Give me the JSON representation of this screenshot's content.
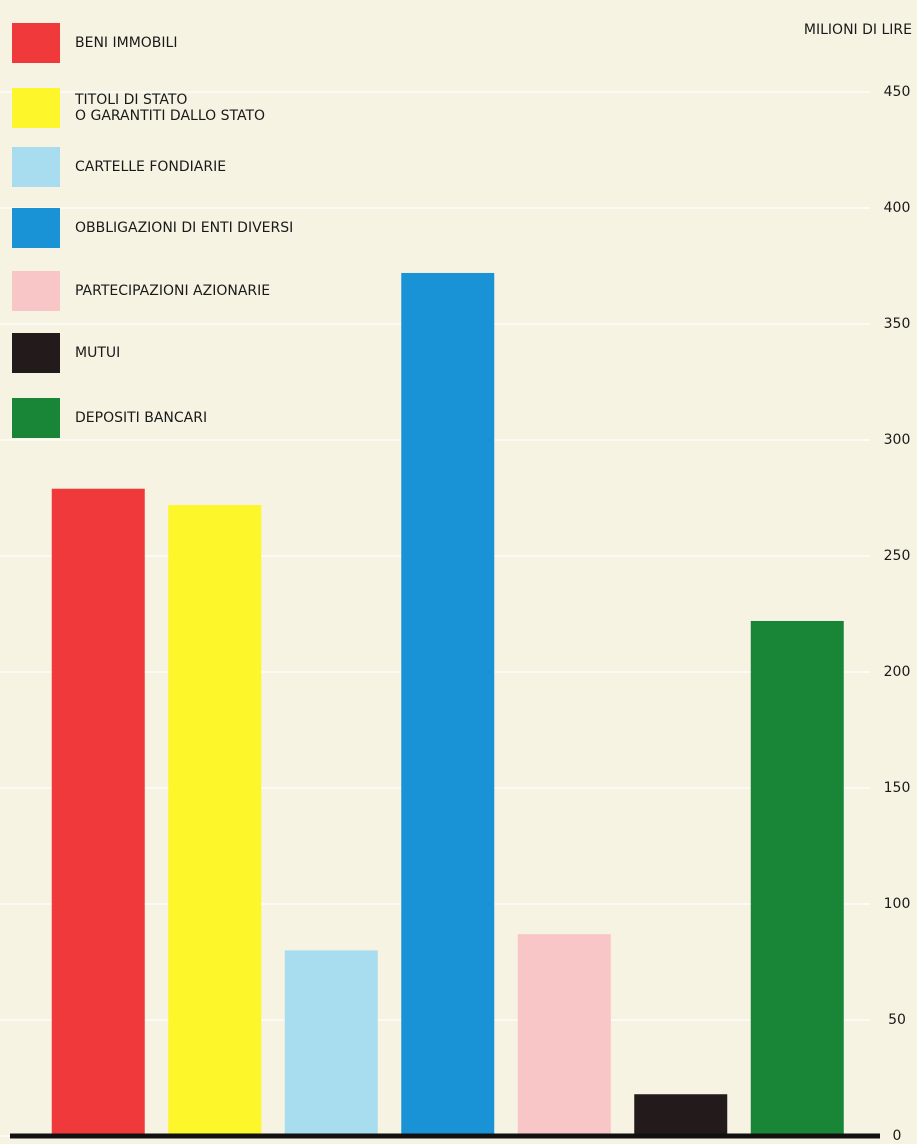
{
  "chart_data": {
    "type": "bar",
    "y_axis_label": "MILIONI DI LIRE",
    "categories": [
      "BENI IMMOBILI",
      "TITOLI DI STATO\nO GARANTITI DALLO STATO",
      "CARTELLE FONDIARIE",
      "OBBLIGAZIONI DI ENTI DIVERSI",
      "PARTECIPAZIONI AZIONARIE",
      "MUTUI",
      "DEPOSITI BANCARI"
    ],
    "values": [
      279,
      272,
      80,
      372,
      87,
      18,
      222
    ],
    "colors": [
      "#f0393a",
      "#fcf62a",
      "#a8dcef",
      "#1a92d6",
      "#f8c6c6",
      "#231a1c",
      "#198536"
    ],
    "ylim": [
      0,
      450
    ],
    "yticks": [
      0,
      50,
      100,
      150,
      200,
      250,
      300,
      350,
      400,
      450
    ],
    "grid": true
  }
}
